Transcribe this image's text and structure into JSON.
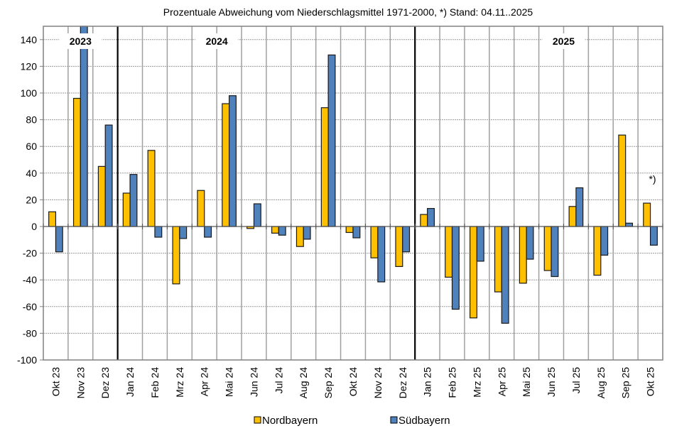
{
  "chart_data": {
    "type": "bar",
    "title": "Prozentuale Abweichung vom Niederschlagsmittel 1971-2000,  *) Stand: 04.11..2025",
    "xlabel": "",
    "ylabel": "",
    "ylim": [
      -100,
      150
    ],
    "yticks": [
      140,
      120,
      100,
      80,
      60,
      40,
      20,
      0,
      -20,
      -40,
      -60,
      -80,
      -100
    ],
    "grid": true,
    "legend_position": "bottom",
    "categories": [
      "Okt 23",
      "Nov 23",
      "Dez 23",
      "Jan 24",
      "Feb 24",
      "Mrz 24",
      "Apr 24",
      "Mai 24",
      "Jun 24",
      "Jul 24",
      "Aug 24",
      "Sep 24",
      "Okt 24",
      "Nov 24",
      "Dez 24",
      "Jan 25",
      "Feb 25",
      "Mrz 25",
      "Apr 25",
      "Mai 25",
      "Jun 25",
      "Jul 25",
      "Aug 25",
      "Sep 25",
      "Okt 25"
    ],
    "series": [
      {
        "name": "Nordbayern",
        "color": "#FFC000",
        "values": [
          11,
          96,
          45,
          25,
          57,
          -43,
          27,
          92,
          -1.5,
          -5,
          -15,
          89,
          -4.5,
          -23.5,
          -30,
          9,
          -38,
          -68.5,
          -49,
          -42.5,
          -33,
          15,
          -36.5,
          68.5,
          17.5
        ]
      },
      {
        "name": "Südbayern",
        "color": "#4F81BD",
        "values": [
          -19,
          150,
          76,
          39,
          -8,
          -9,
          -8,
          98,
          17,
          -6.5,
          -9.5,
          128.5,
          -8.5,
          -41.5,
          -19,
          13.5,
          -62,
          -26,
          -72.5,
          -24.5,
          -37.5,
          29,
          -21.5,
          2.5,
          -14
        ]
      }
    ],
    "year_labels": [
      {
        "label": "2023",
        "category_index": 1
      },
      {
        "label": "2024",
        "category_index": 6.5
      },
      {
        "label": "2025",
        "category_index": 20.5
      }
    ],
    "year_separators_after": [
      2,
      14
    ],
    "annotations": [
      {
        "text": "*)",
        "category_index": 24,
        "y": 33
      }
    ]
  }
}
